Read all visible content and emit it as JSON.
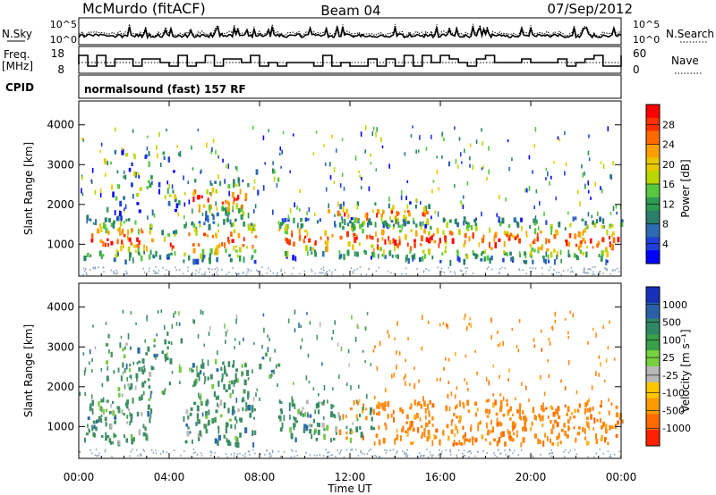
{
  "header": {
    "site": "McMurdo (fitACF)",
    "beam": "Beam 04",
    "date": "07/Sep/2012"
  },
  "noise_panel": {
    "left_label": "N.Sky",
    "right_label": "N.Search",
    "ticks": [
      "10^5",
      "10^0"
    ]
  },
  "freq_panel": {
    "left_label": "Freq.",
    "left_unit": "[MHz]",
    "left_ticks": [
      "18",
      "8"
    ],
    "right_label": "Nave",
    "right_ticks": [
      "60",
      "0"
    ]
  },
  "cpid_panel": {
    "label": "CPID",
    "value": "normalsound (fast) 157 RF"
  },
  "time_axis": {
    "label": "Time UT",
    "ticks": [
      "00:00",
      "04:00",
      "08:00",
      "12:00",
      "16:00",
      "20:00",
      "00:00"
    ]
  },
  "chart_data": [
    {
      "type": "heatmap",
      "panel": "power",
      "ylabel": "Slant Range [km]",
      "yticks": [
        1000,
        2000,
        3000,
        4000
      ],
      "ylim": [
        200,
        4600
      ],
      "xlim_hours": [
        0,
        24
      ],
      "colorbar_label": "Power [dB]",
      "colorbar_ticks": [
        "28",
        "24",
        "20",
        "16",
        "12",
        "8",
        "4"
      ],
      "colorbar_colors": [
        "#ff0000",
        "#ff3000",
        "#ff6a00",
        "#ffa000",
        "#e8c800",
        "#b8d600",
        "#58c840",
        "#2e9a52",
        "#2a7e6a",
        "#2c6cb0",
        "#2040d8",
        "#0000ff"
      ],
      "colorbar_range": [
        0,
        32
      ],
      "color_mapping": "power-scale",
      "echo_regions": [
        {
          "t0": 0.2,
          "t1": 3.2,
          "r0": 600,
          "r1": 1750
        },
        {
          "t0": 1.0,
          "t1": 4.5,
          "r0": 1800,
          "r1": 3400
        },
        {
          "t0": 3.2,
          "t1": 4.3,
          "r0": 700,
          "r1": 1400
        },
        {
          "t0": 4.6,
          "t1": 7.8,
          "r0": 600,
          "r1": 1700
        },
        {
          "t0": 5.0,
          "t1": 7.5,
          "r0": 1700,
          "r1": 2700
        },
        {
          "t0": 7.8,
          "t1": 8.8,
          "r0": 2300,
          "r1": 2900
        },
        {
          "t0": 8.8,
          "t1": 13.0,
          "r0": 700,
          "r1": 1700
        },
        {
          "t0": 11.0,
          "t1": 15.5,
          "r0": 1500,
          "r1": 2100
        },
        {
          "t0": 13.0,
          "t1": 24.0,
          "r0": 600,
          "r1": 1700
        }
      ]
    },
    {
      "type": "heatmap",
      "panel": "velocity",
      "ylabel": "Slant Range [km]",
      "yticks": [
        1000,
        2000,
        3000,
        4000
      ],
      "ylim": [
        200,
        4600
      ],
      "xlim_hours": [
        0,
        24
      ],
      "colorbar_label": "Velocity [m s⁻¹]",
      "colorbar_ticks": [
        "1000",
        "500",
        "100",
        "25",
        "-25",
        "-100",
        "-500",
        "-1000"
      ],
      "colorbar_colors": [
        "#1830b8",
        "#2a60a8",
        "#2e8866",
        "#38a048",
        "#78d040",
        "#b8b8b8",
        "#ffc800",
        "#ff9a00",
        "#ff6a00",
        "#ff2000"
      ],
      "color_mapping": "velocity-scale",
      "echo_regions": [
        {
          "t0": 0.2,
          "t1": 3.2,
          "r0": 600,
          "r1": 1750
        },
        {
          "t0": 1.0,
          "t1": 4.5,
          "r0": 1800,
          "r1": 3400
        },
        {
          "t0": 4.6,
          "t1": 7.8,
          "r0": 600,
          "r1": 1700
        },
        {
          "t0": 5.0,
          "t1": 7.5,
          "r0": 1700,
          "r1": 2700
        },
        {
          "t0": 7.8,
          "t1": 8.8,
          "r0": 2300,
          "r1": 2900
        },
        {
          "t0": 8.8,
          "t1": 13.0,
          "r0": 700,
          "r1": 1700
        },
        {
          "t0": 13.0,
          "t1": 24.0,
          "r0": 600,
          "r1": 1700
        }
      ]
    }
  ]
}
